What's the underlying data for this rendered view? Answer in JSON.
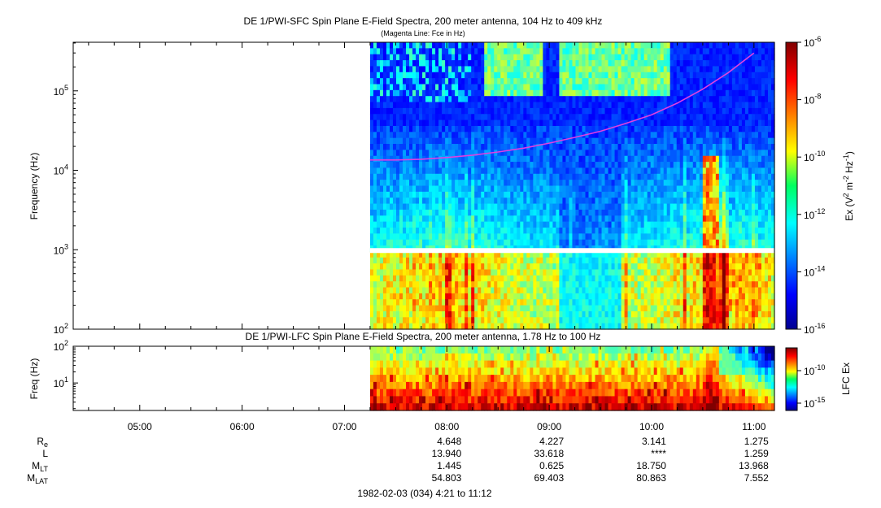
{
  "top_panel": {
    "title": "DE 1/PWI-SFC  Spin Plane E-Field Spectra, 200 meter antenna, 104 Hz to 409 kHz",
    "subtitle": "(Magenta Line: Fce in Hz)",
    "ylabel": "Frequency (Hz)",
    "ytick_base": "10",
    "ytick_exponents": [
      "2",
      "3",
      "4",
      "5"
    ],
    "colorbar": {
      "label_parts": [
        "Ex (V",
        "2",
        " m",
        "-2",
        " Hz",
        "-1",
        ")"
      ],
      "tick_base": "10",
      "tick_exponents": [
        "-6",
        "-8",
        "-10",
        "-12",
        "-14",
        "-16"
      ]
    }
  },
  "bottom_panel": {
    "title": "DE 1/PWI-LFC  Spin Plane E-Field Spectra, 200 meter antenna, 1.78 Hz to 100 Hz",
    "ylabel": "Freq (Hz)",
    "ytick_base": "10",
    "ytick_exponents": [
      "1",
      "2"
    ],
    "colorbar": {
      "label": "LFC Ex",
      "tick_base": "10",
      "tick_exponents": [
        "-10",
        "-15"
      ]
    }
  },
  "time_axis": {
    "tick_labels": [
      "05:00",
      "06:00",
      "07:00",
      "08:00",
      "09:00",
      "10:00",
      "11:00"
    ]
  },
  "ephemeris": {
    "rows": [
      {
        "label": "R",
        "sub": "e",
        "values": [
          "4.648",
          "4.227",
          "3.141",
          "1.275"
        ]
      },
      {
        "label": "L",
        "sub": "",
        "values": [
          "13.940",
          "33.618",
          "****",
          "1.259"
        ]
      },
      {
        "label": "M",
        "sub": "LT",
        "values": [
          "1.445",
          "0.625",
          "18.750",
          "13.968"
        ]
      },
      {
        "label": "M",
        "sub": "LAT",
        "values": [
          "54.803",
          "69.403",
          "80.863",
          "7.552"
        ]
      }
    ]
  },
  "footer": {
    "date_range": "1982-02-03 (034) 4:21 to 11:12"
  },
  "colors": {
    "magenta_line": "#e040e0",
    "background_dark": "#0a1c9a"
  },
  "chart_data": [
    {
      "type": "heatmap",
      "title": "DE 1/PWI-SFC  Spin Plane E-Field Spectra, 200 meter antenna, 104 Hz to 409 kHz",
      "subtitle": "(Magenta Line: Fce in Hz)",
      "xlabel": "",
      "ylabel": "Frequency (Hz)",
      "x_range_hours": [
        4.35,
        11.2
      ],
      "data_start_hour": 7.25,
      "y_range_hz": [
        100,
        409000
      ],
      "y_scale": "log",
      "z_range": [
        1e-16,
        1e-06
      ],
      "z_scale": "log",
      "colorbar_label": "Ex (V^2 m^-2 Hz^-1)",
      "fce_line": {
        "name": "Fce in Hz",
        "x_hours": [
          7.25,
          7.5,
          7.75,
          8.0,
          8.25,
          8.5,
          8.75,
          9.0,
          9.25,
          9.5,
          9.75,
          10.0,
          10.25,
          10.5,
          10.75,
          11.0
        ],
        "y_hz": [
          13500,
          13500,
          13800,
          14500,
          15500,
          17000,
          19000,
          22000,
          26000,
          31000,
          39000,
          50000,
          70000,
          105000,
          170000,
          300000
        ]
      },
      "grid": false
    },
    {
      "type": "heatmap",
      "title": "DE 1/PWI-LFC  Spin Plane E-Field Spectra, 200 meter antenna, 1.78 Hz to 100 Hz",
      "xlabel": "",
      "ylabel": "Freq (Hz)",
      "x_range_hours": [
        4.35,
        11.2
      ],
      "data_start_hour": 7.25,
      "y_range_hz": [
        1.78,
        100
      ],
      "y_scale": "log",
      "colorbar_label": "LFC Ex",
      "z_scale": "log",
      "grid": false
    }
  ]
}
